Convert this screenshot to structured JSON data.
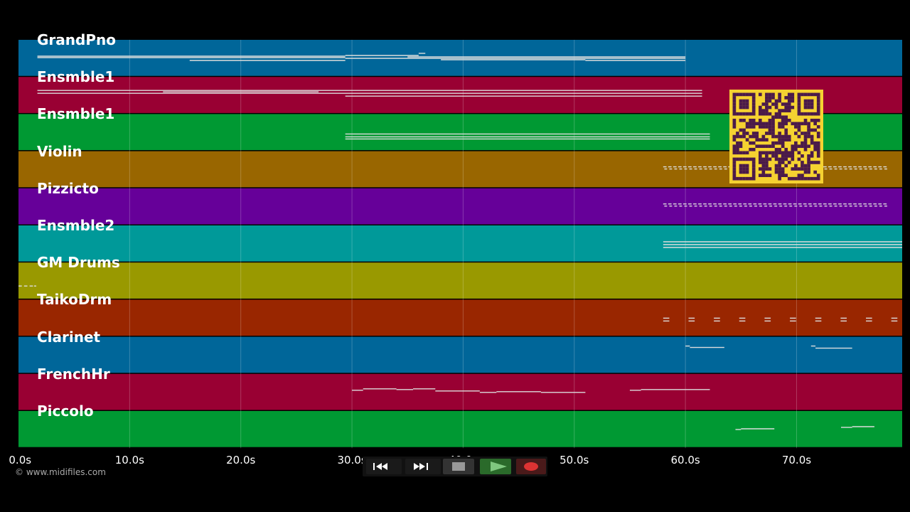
{
  "copyright": "© www.midifiles.com",
  "tracks": [
    {
      "name": "GrandPno",
      "color": "#006699"
    },
    {
      "name": "Ensmble1",
      "color": "#990033"
    },
    {
      "name": "Ensmble1",
      "color": "#009933"
    },
    {
      "name": "Violin",
      "color": "#996600"
    },
    {
      "name": "Pizzicto",
      "color": "#660099"
    },
    {
      "name": "Ensmble2",
      "color": "#009999"
    },
    {
      "name": "GM Drums",
      "color": "#999900"
    },
    {
      "name": "TaikoDrm",
      "color": "#992600"
    },
    {
      "name": "Clarinet",
      "color": "#006699"
    },
    {
      "name": "FrenchHr",
      "color": "#990033"
    },
    {
      "name": "Piccolo",
      "color": "#009933"
    }
  ],
  "timeline": {
    "start_seconds": 0,
    "end_seconds": 79.5,
    "tick_labels": [
      "0.0s",
      "10.0s",
      "20.0s",
      "30.0s",
      "40.0s",
      "50.0s",
      "60.0s",
      "70.0s"
    ]
  },
  "transport": {
    "buttons": [
      {
        "name": "rewind-button",
        "icon": "rewind-icon"
      },
      {
        "name": "fast-forward-button",
        "icon": "fast-forward-icon"
      },
      {
        "name": "stop-button",
        "icon": "stop-icon"
      },
      {
        "name": "play-button",
        "icon": "play-icon",
        "active": true
      },
      {
        "name": "record-button",
        "icon": "record-icon"
      }
    ]
  },
  "qr_code": {
    "color": "#f5d231",
    "dark": "#4a1a4a"
  },
  "note_color": "#dddddd"
}
